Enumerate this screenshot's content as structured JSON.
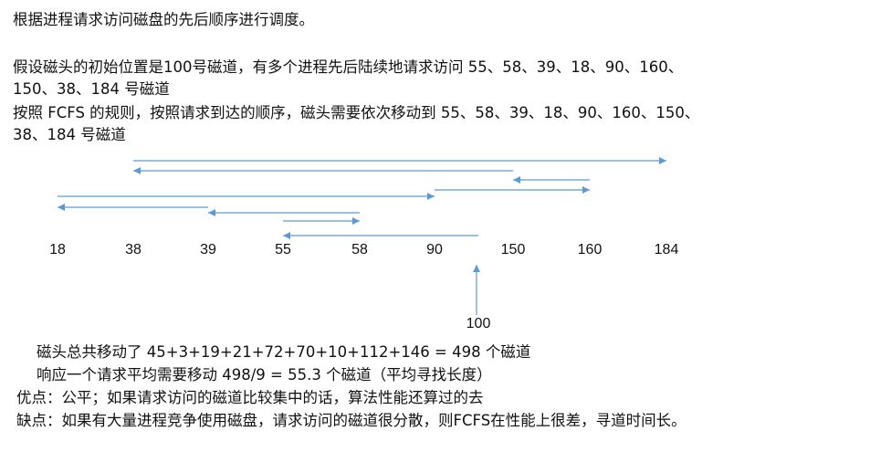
{
  "intro": "根据进程请求访问磁盘的先后顺序进行调度。",
  "assume_1": "假设磁头的初始位置是100号磁道，有多个进程先后陆续地请求访问 55、58、39、18、90、160、",
  "assume_2": "150、38、184 号磁道",
  "rule_1": "按照 FCFS 的规则，按照请求到达的顺序，磁头需要依次移动到 55、58、39、18、90、160、150、",
  "rule_2": "38、184 号磁道",
  "tracks": [
    "18",
    "38",
    "39",
    "55",
    "58",
    "90",
    "150",
    "160",
    "184"
  ],
  "start_track": "100",
  "sequence": [
    100,
    55,
    58,
    39,
    18,
    90,
    160,
    150,
    38,
    184
  ],
  "arrow_color": "#5b9bd5",
  "total": "磁头总共移动了  45+3+19+21+72+70+10+112+146 = 498  个磁道",
  "average": "响应一个请求平均需要移动 498/9 = 55.3 个磁道（平均寻找长度）",
  "pros": "优点：公平；如果请求访问的磁道比较集中的话，算法性能还算过的去",
  "cons": "缺点：如果有大量进程竞争使用磁盘，请求访问的磁道很分散，则FCFS在性能上很差，寻道时间长。"
}
